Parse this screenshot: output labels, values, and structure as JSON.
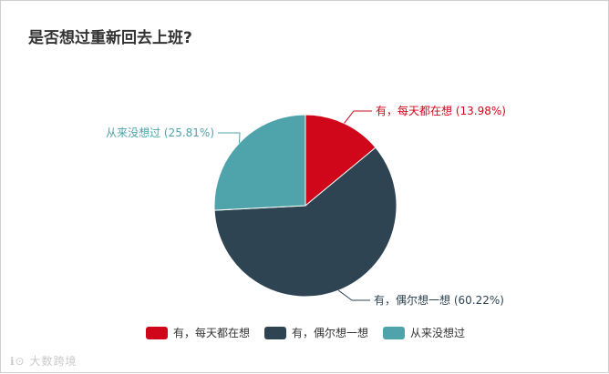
{
  "chart_data": {
    "type": "pie",
    "title": "是否想过重新回去上班?",
    "slices": [
      {
        "name": "有，每天都在想",
        "label": "有，每天都在想 (13.98%)",
        "value": 13.98,
        "color": "#d0071a"
      },
      {
        "name": "有，偶尔想一想",
        "label": "有，偶尔想一想 (60.22%)",
        "value": 60.22,
        "color": "#2e4453"
      },
      {
        "name": "从来没想过",
        "label": "从来没想过 (25.81%)",
        "value": 25.81,
        "color": "#4fa3ab"
      }
    ],
    "legend_position": "bottom"
  },
  "watermark": {
    "text": "大数跨境"
  }
}
